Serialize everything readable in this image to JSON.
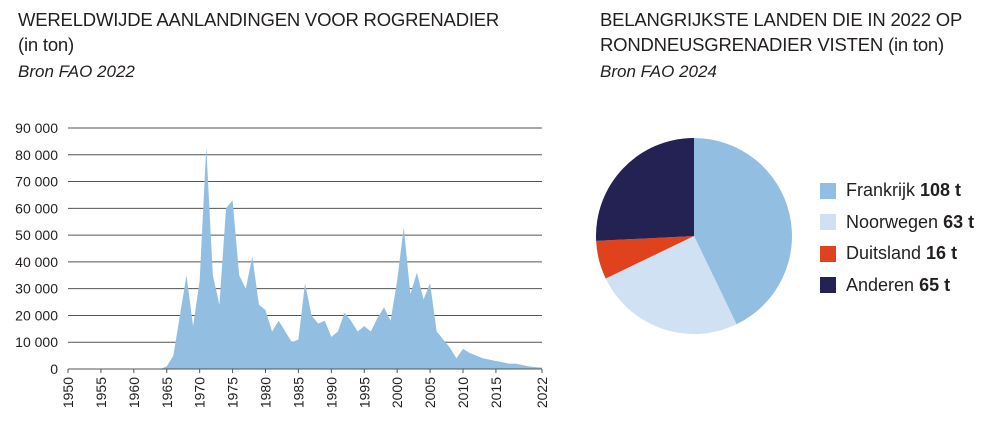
{
  "left": {
    "title": "WERELDWIJDE AANLANDINGEN VOOR ROGRENADIER",
    "subtitle": "(in ton)",
    "source": "Bron FAO 2022"
  },
  "right": {
    "title": "BELANGRIJKSTE LANDEN DIE IN 2022 OP RONDNEUSGRENADIER VISTEN",
    "subtitle": "(in ton)",
    "source": "Bron FAO 2024"
  },
  "chart_data": [
    {
      "type": "area",
      "title": "WERELDWIJDE AANLANDINGEN VOOR ROGRENADIER",
      "ylim": [
        0,
        90000
      ],
      "y_ticks": [
        0,
        10000,
        20000,
        30000,
        40000,
        50000,
        60000,
        70000,
        80000,
        90000
      ],
      "y_tick_labels": [
        "0",
        "10 000",
        "20 000",
        "30 000",
        "40 000",
        "50 000",
        "60 000",
        "70 000",
        "80 000",
        "90 000"
      ],
      "xlim": [
        1950,
        2022
      ],
      "x_ticks": [
        1950,
        1955,
        1960,
        1965,
        1970,
        1975,
        1980,
        1985,
        1990,
        1995,
        2000,
        2005,
        2010,
        2015,
        2022
      ],
      "grid": true,
      "color": "#92bfe1",
      "x": [
        1950,
        1951,
        1952,
        1953,
        1954,
        1955,
        1956,
        1957,
        1958,
        1959,
        1960,
        1961,
        1962,
        1963,
        1964,
        1965,
        1966,
        1967,
        1968,
        1969,
        1970,
        1971,
        1972,
        1973,
        1974,
        1975,
        1976,
        1977,
        1978,
        1979,
        1980,
        1981,
        1982,
        1983,
        1984,
        1985,
        1986,
        1987,
        1988,
        1989,
        1990,
        1991,
        1992,
        1993,
        1994,
        1995,
        1996,
        1997,
        1998,
        1999,
        2000,
        2001,
        2002,
        2003,
        2004,
        2005,
        2006,
        2007,
        2008,
        2009,
        2010,
        2011,
        2012,
        2013,
        2014,
        2015,
        2016,
        2017,
        2018,
        2019,
        2020,
        2021,
        2022
      ],
      "values": [
        0,
        0,
        0,
        0,
        0,
        0,
        0,
        0,
        0,
        0,
        0,
        0,
        0,
        0,
        0,
        1000,
        5000,
        20000,
        35000,
        16000,
        33000,
        83000,
        35000,
        24000,
        60000,
        63000,
        35000,
        30000,
        42000,
        24000,
        22000,
        14000,
        18000,
        14000,
        10000,
        11000,
        32000,
        20000,
        17000,
        18000,
        12000,
        14000,
        21000,
        18000,
        14000,
        16000,
        14000,
        19000,
        23000,
        18000,
        33000,
        53000,
        28000,
        36000,
        26000,
        32000,
        14000,
        11000,
        8000,
        4000,
        7500,
        6000,
        5000,
        4000,
        3500,
        3000,
        2500,
        2000,
        2000,
        1500,
        1000,
        700,
        500
      ]
    },
    {
      "type": "pie",
      "title": "BELANGRIJKSTE LANDEN DIE IN 2022 OP RONDNEUSGRENADIER VISTEN",
      "slices": [
        {
          "label": "Frankrijk",
          "value": 108,
          "display": "108 t",
          "color": "#92bfe1"
        },
        {
          "label": "Noorwegen",
          "value": 63,
          "display": "63 t",
          "color": "#cfe1f3"
        },
        {
          "label": "Duitsland",
          "value": 16,
          "display": "16 t",
          "color": "#e1421e"
        },
        {
          "label": "Anderen",
          "value": 65,
          "display": "65 t",
          "color": "#232252"
        }
      ]
    }
  ]
}
